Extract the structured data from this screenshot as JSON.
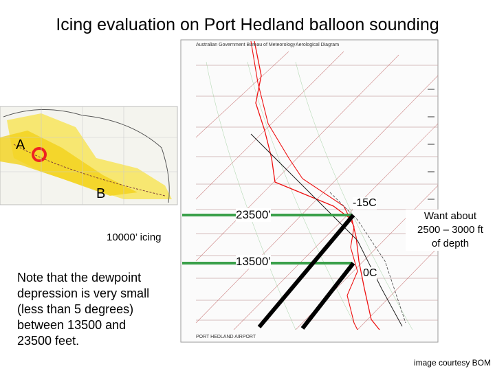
{
  "header": {
    "title": "Icing evaluation on Port Hedland balloon sounding"
  },
  "map": {
    "label_a": "A",
    "label_b": "B"
  },
  "diagram": {
    "heading": "Aerological Diagram",
    "agency": "Australian Government Bureau of Meteorology",
    "station": "PORT HEDLAND AIRPORT"
  },
  "annotations": {
    "upper_height": "23500’",
    "upper_temp": "-15C",
    "lower_height": "13500’",
    "lower_temp": "0C",
    "icing": "10000’ icing",
    "depth": [
      "Want about",
      "2500 – 3000 ft",
      "of depth"
    ]
  },
  "note": [
    "Note that the dewpoint",
    "depression is very small",
    "(less than 5 degrees)",
    "between 13500 and",
    "23500 feet."
  ],
  "credit": "image courtesy BOM"
}
